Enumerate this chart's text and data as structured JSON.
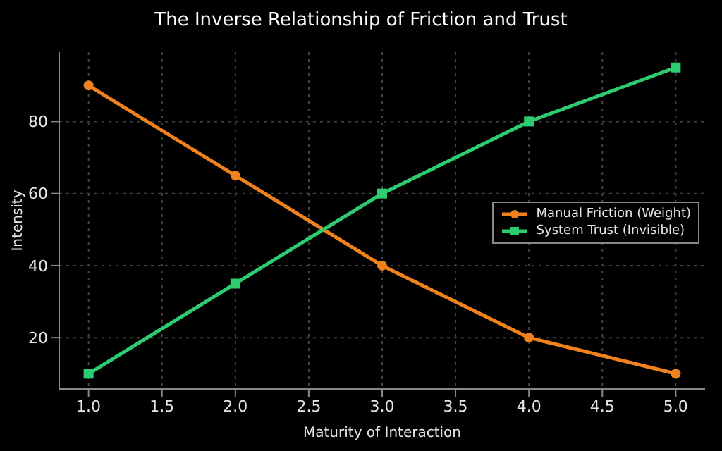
{
  "chart_data": {
    "type": "line",
    "title": "The Inverse Relationship of Friction and Trust",
    "xlabel": "Maturity of Interaction",
    "ylabel": "Intensity",
    "x": [
      1,
      2,
      3,
      4,
      5
    ],
    "series": [
      {
        "name": "Manual Friction (Weight)",
        "color": "#f0821e",
        "values": [
          90,
          65,
          40,
          20,
          10
        ],
        "marker": "circle"
      },
      {
        "name": "System Trust (Invisible)",
        "color": "#2ecc71",
        "values": [
          10,
          35,
          60,
          80,
          95
        ],
        "marker": "square"
      }
    ],
    "xlim": [
      0.8,
      5.2
    ],
    "xticks": [
      {
        "value": 1,
        "label": "1.0"
      },
      {
        "value": 1.5,
        "label": "1.5"
      },
      {
        "value": 2,
        "label": "2.0"
      },
      {
        "value": 2.5,
        "label": "2.5"
      },
      {
        "value": 3,
        "label": "3.0"
      },
      {
        "value": 3.5,
        "label": "3.5"
      },
      {
        "value": 4,
        "label": "4.0"
      },
      {
        "value": 4.5,
        "label": "4.5"
      },
      {
        "value": 5,
        "label": "5.0"
      }
    ],
    "ylim": [
      5.75,
      99.25
    ],
    "yticks": [
      20,
      40,
      60,
      80
    ],
    "grid": true,
    "legend": "right",
    "line_style": "solid"
  }
}
